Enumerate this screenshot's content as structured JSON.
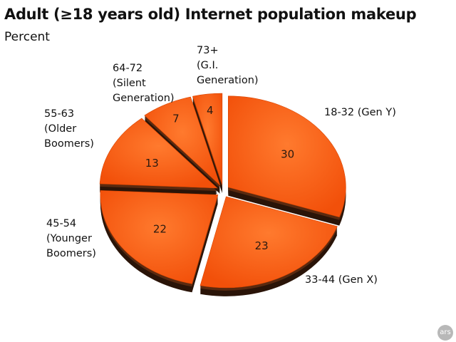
{
  "title": "Adult (≥18 years old) Internet population makeup",
  "subtitle": "Percent",
  "logo_text": "ars",
  "chart_data": {
    "type": "pie",
    "title": "Adult (≥18 years old) Internet population makeup",
    "subtitle": "Percent",
    "style": "3d-exploded",
    "color": "#ff5f14",
    "categories": [
      "18-32 (Gen Y)",
      "33-44 (Gen X)",
      "45-54 (Younger Boomers)",
      "55-63 (Older Boomers)",
      "64-72 (Silent Generation)",
      "73+ (G.I. Generation)"
    ],
    "labels": [
      "18-32 (Gen Y)",
      "33-44 (Gen X)",
      "45-54\n(Younger\nBoomers)",
      "55-63\n(Older\nBoomers)",
      "64-72\n(Silent\nGeneration)",
      "73+\n(G.I.\nGeneration)"
    ],
    "values": [
      30,
      23,
      22,
      13,
      7,
      4
    ],
    "value_labels": [
      "30",
      "23",
      "22",
      "13",
      "7",
      "4"
    ]
  }
}
